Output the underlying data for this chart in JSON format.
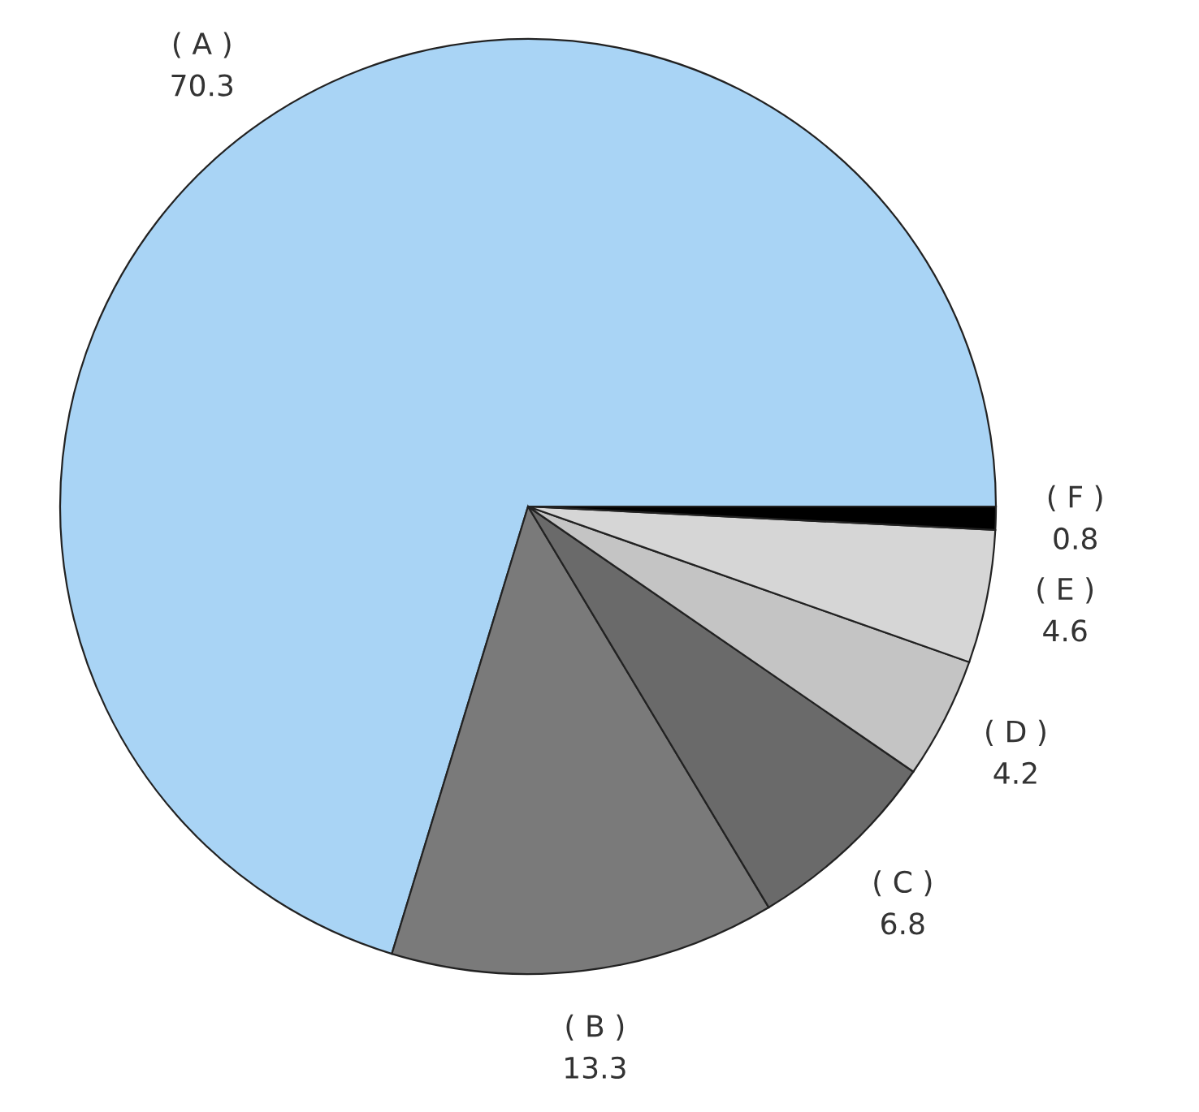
{
  "chart_data": {
    "type": "pie",
    "categories": [
      "( A )",
      "( B )",
      "( C )",
      "( D )",
      "( E )",
      "( F )"
    ],
    "values": [
      70.3,
      13.3,
      6.8,
      4.2,
      4.6,
      0.8
    ],
    "colors": [
      "#a9d4f5",
      "#7a7a7a",
      "#6a6a6a",
      "#c4c4c4",
      "#d6d6d6",
      "#000000"
    ],
    "data_labels": true,
    "legend": false
  }
}
